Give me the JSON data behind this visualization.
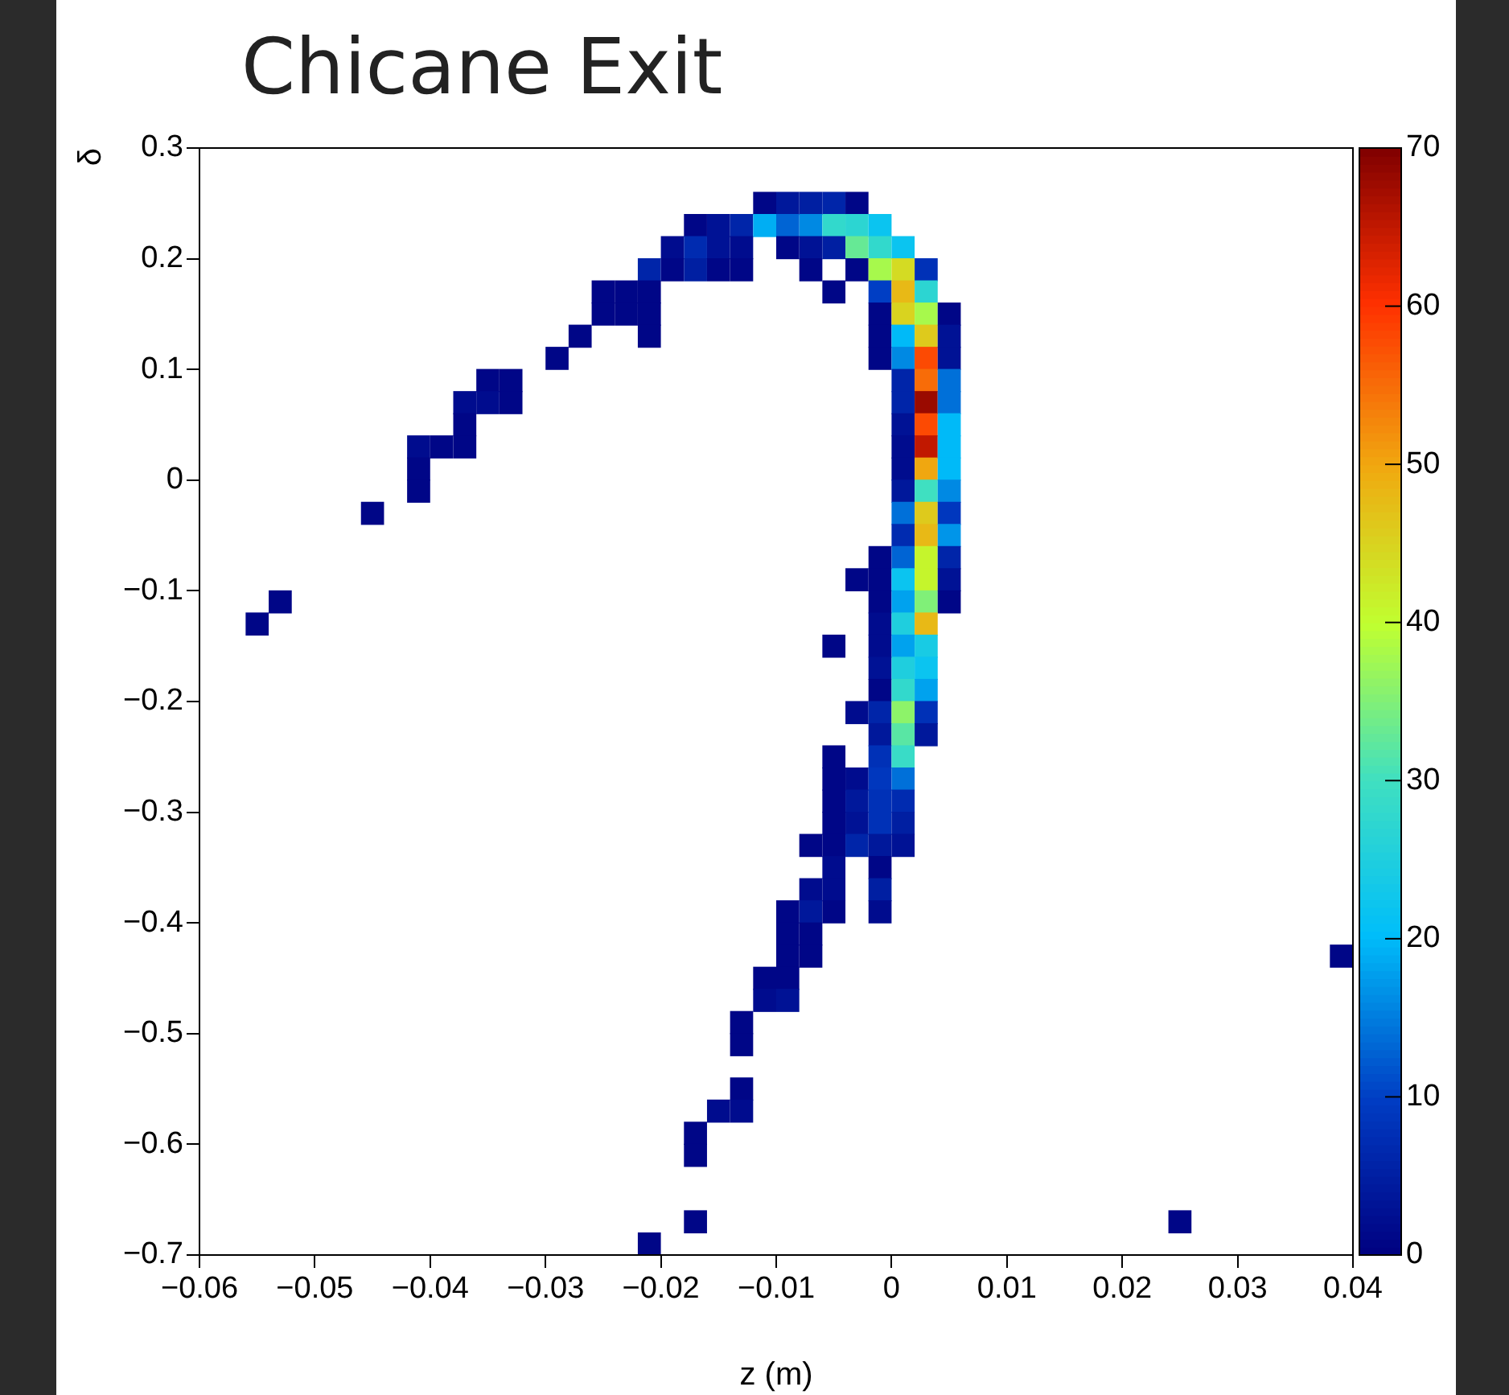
{
  "chart_data": {
    "type": "scatter",
    "title": "Chicane Exit",
    "xlabel": "z (m)",
    "ylabel": "δ",
    "x": [
      -0.011,
      -0.009,
      -0.007,
      -0.005,
      -0.003,
      -0.017,
      -0.015,
      -0.013,
      -0.011,
      -0.009,
      -0.007,
      -0.005,
      -0.003,
      -0.001,
      -0.019,
      -0.017,
      -0.015,
      -0.013,
      -0.009,
      -0.007,
      -0.005,
      -0.003,
      -0.001,
      0.001,
      -0.021,
      -0.019,
      -0.017,
      -0.015,
      -0.013,
      -0.007,
      -0.003,
      -0.001,
      0.001,
      0.003,
      -0.025,
      -0.023,
      -0.021,
      -0.005,
      -0.001,
      0.001,
      0.003,
      -0.025,
      -0.023,
      -0.021,
      -0.001,
      0.001,
      0.003,
      0.005,
      -0.027,
      -0.021,
      -0.001,
      0.001,
      0.003,
      0.005,
      -0.029,
      -0.001,
      0.001,
      0.003,
      0.005,
      -0.035,
      -0.033,
      0.001,
      0.003,
      0.005,
      -0.037,
      -0.035,
      -0.033,
      0.001,
      0.003,
      0.005,
      -0.037,
      0.001,
      0.003,
      0.005,
      -0.041,
      -0.039,
      -0.037,
      0.001,
      0.003,
      0.005,
      -0.041,
      0.001,
      0.003,
      0.005,
      -0.041,
      0.001,
      0.003,
      0.005,
      -0.045,
      0.001,
      0.003,
      0.005,
      0.001,
      0.003,
      0.005,
      -0.001,
      0.001,
      0.003,
      0.005,
      -0.003,
      -0.001,
      0.001,
      0.003,
      0.005,
      -0.053,
      -0.001,
      0.001,
      0.003,
      0.005,
      -0.055,
      -0.001,
      0.001,
      0.003,
      -0.005,
      -0.001,
      0.001,
      0.003,
      -0.001,
      0.001,
      0.003,
      -0.001,
      0.001,
      0.003,
      -0.003,
      -0.001,
      0.001,
      0.003,
      -0.001,
      0.001,
      0.003,
      -0.005,
      -0.001,
      0.001,
      -0.005,
      -0.003,
      -0.001,
      0.001,
      -0.005,
      -0.003,
      -0.001,
      0.001,
      -0.005,
      -0.003,
      -0.001,
      0.001,
      -0.007,
      -0.005,
      -0.003,
      -0.001,
      0.001,
      -0.005,
      -0.001,
      -0.007,
      -0.005,
      -0.001,
      -0.009,
      -0.007,
      -0.005,
      -0.001,
      -0.009,
      -0.007,
      -0.009,
      -0.007,
      0.039,
      -0.011,
      -0.009,
      -0.011,
      -0.009,
      -0.013,
      -0.013,
      -0.013,
      -0.015,
      -0.013,
      -0.017,
      -0.017,
      -0.017,
      0.025,
      -0.021
    ],
    "values": [
      0.25,
      0.25,
      0.25,
      0.25,
      0.25,
      0.23,
      0.23,
      0.23,
      0.23,
      0.23,
      0.23,
      0.23,
      0.23,
      0.23,
      0.21,
      0.21,
      0.21,
      0.21,
      0.21,
      0.21,
      0.21,
      0.21,
      0.21,
      0.21,
      0.19,
      0.19,
      0.19,
      0.19,
      0.19,
      0.19,
      0.19,
      0.19,
      0.19,
      0.19,
      0.17,
      0.17,
      0.17,
      0.17,
      0.17,
      0.17,
      0.17,
      0.15,
      0.15,
      0.15,
      0.15,
      0.15,
      0.15,
      0.15,
      0.13,
      0.13,
      0.13,
      0.13,
      0.13,
      0.13,
      0.11,
      0.11,
      0.11,
      0.11,
      0.11,
      0.09,
      0.09,
      0.09,
      0.09,
      0.09,
      0.07,
      0.07,
      0.07,
      0.07,
      0.07,
      0.07,
      0.05,
      0.05,
      0.05,
      0.05,
      0.03,
      0.03,
      0.03,
      0.03,
      0.03,
      0.03,
      0.01,
      0.01,
      0.01,
      0.01,
      -0.01,
      -0.01,
      -0.01,
      -0.01,
      -0.03,
      -0.03,
      -0.03,
      -0.03,
      -0.05,
      -0.05,
      -0.05,
      -0.07,
      -0.07,
      -0.07,
      -0.07,
      -0.09,
      -0.09,
      -0.09,
      -0.09,
      -0.09,
      -0.11,
      -0.11,
      -0.11,
      -0.11,
      -0.11,
      -0.13,
      -0.13,
      -0.13,
      -0.13,
      -0.15,
      -0.15,
      -0.15,
      -0.15,
      -0.17,
      -0.17,
      -0.17,
      -0.19,
      -0.19,
      -0.19,
      -0.21,
      -0.21,
      -0.21,
      -0.21,
      -0.23,
      -0.23,
      -0.23,
      -0.25,
      -0.25,
      -0.25,
      -0.27,
      -0.27,
      -0.27,
      -0.27,
      -0.29,
      -0.29,
      -0.29,
      -0.29,
      -0.31,
      -0.31,
      -0.31,
      -0.31,
      -0.33,
      -0.33,
      -0.33,
      -0.33,
      -0.33,
      -0.35,
      -0.35,
      -0.37,
      -0.37,
      -0.37,
      -0.39,
      -0.39,
      -0.39,
      -0.39,
      -0.41,
      -0.41,
      -0.43,
      -0.43,
      -0.43,
      -0.45,
      -0.45,
      -0.47,
      -0.47,
      -0.49,
      -0.51,
      -0.55,
      -0.57,
      -0.57,
      -0.59,
      -0.61,
      -0.67,
      -0.67,
      -0.69
    ],
    "cvalues": [
      1,
      4,
      5,
      6,
      1,
      1,
      3,
      6,
      19,
      13,
      16,
      28,
      27,
      22,
      2,
      7,
      3,
      2,
      1,
      3,
      5,
      33,
      28,
      22,
      6,
      1,
      5,
      1,
      1,
      1,
      1,
      38,
      44,
      8,
      1,
      1,
      1,
      1,
      10,
      48,
      27,
      1,
      1,
      1,
      1,
      45,
      38,
      1,
      1,
      1,
      1,
      20,
      46,
      3,
      1,
      1,
      16,
      58,
      3,
      1,
      1,
      6,
      55,
      14,
      2,
      2,
      1,
      6,
      68,
      14,
      1,
      3,
      58,
      20,
      2,
      1,
      1,
      2,
      65,
      20,
      1,
      2,
      50,
      20,
      1,
      4,
      30,
      16,
      1,
      14,
      46,
      9,
      7,
      48,
      17,
      1,
      13,
      41,
      6,
      1,
      1,
      22,
      41,
      3,
      1,
      1,
      18,
      35,
      1,
      1,
      2,
      25,
      48,
      1,
      2,
      18,
      24,
      3,
      25,
      22,
      1,
      28,
      18,
      2,
      6,
      36,
      8,
      4,
      32,
      4,
      1,
      8,
      29,
      1,
      2,
      9,
      14,
      1,
      4,
      8,
      7,
      1,
      3,
      8,
      5,
      1,
      1,
      6,
      4,
      3,
      2,
      1,
      2,
      2,
      5,
      1,
      4,
      1,
      2,
      1,
      1,
      1,
      1,
      1,
      1,
      1,
      2,
      3,
      1,
      1,
      1,
      2,
      2,
      1,
      1,
      1,
      1,
      1
    ],
    "marker": "square",
    "xlim": [
      -0.06,
      0.04
    ],
    "xticks": [
      -0.06,
      -0.05,
      -0.04,
      -0.03,
      -0.02,
      -0.01,
      0,
      0.01,
      0.02,
      0.03,
      0.04
    ],
    "ylim": [
      -0.7,
      0.3
    ],
    "yticks": [
      -0.7,
      -0.6,
      -0.5,
      -0.4,
      -0.3,
      -0.2,
      -0.1,
      0,
      0.1,
      0.2,
      0.3
    ],
    "clim": [
      0,
      70
    ],
    "cticks": [
      0,
      10,
      20,
      30,
      40,
      50,
      60,
      70
    ],
    "legend": false,
    "grid": false
  }
}
